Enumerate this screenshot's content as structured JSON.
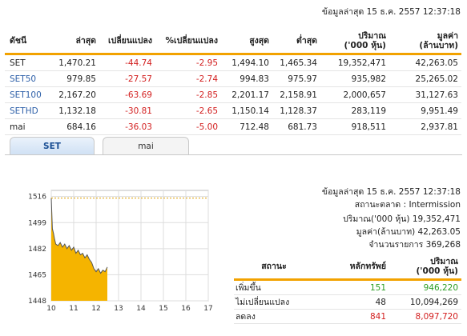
{
  "update_line": "ข้อมูลล่าสุด 15 ธ.ค. 2557 12:37:18",
  "index_table": {
    "headers": [
      "ดัชนี",
      "ล่าสุด",
      "เปลี่ยนแปลง",
      "%เปลี่ยนแปลง",
      "สูงสุด",
      "ต่ำสุด",
      "ปริมาณ ('000 หุ้น)",
      "มูลค่า (ล้านบาท)"
    ],
    "header_volume": [
      "ปริมาณ",
      "('000 หุ้น)"
    ],
    "header_value": [
      "มูลค่า",
      "(ล้านบาท)"
    ],
    "rows": [
      {
        "name": "SET",
        "last": "1,470.21",
        "change": "-44.74",
        "pct": "-2.95",
        "high": "1,494.10",
        "low": "1,465.34",
        "volume": "19,352,471",
        "value": "42,263.05"
      },
      {
        "name": "SET50",
        "last": "979.85",
        "change": "-27.57",
        "pct": "-2.74",
        "high": "994.83",
        "low": "975.97",
        "volume": "935,982",
        "value": "25,265.02"
      },
      {
        "name": "SET100",
        "last": "2,167.20",
        "change": "-63.69",
        "pct": "-2.85",
        "high": "2,201.17",
        "low": "2,158.91",
        "volume": "2,000,657",
        "value": "31,127.63"
      },
      {
        "name": "SETHD",
        "last": "1,132.18",
        "change": "-30.81",
        "pct": "-2.65",
        "high": "1,150.14",
        "low": "1,128.37",
        "volume": "283,119",
        "value": "9,951.49"
      },
      {
        "name": "mai",
        "last": "684.16",
        "change": "-36.03",
        "pct": "-5.00",
        "high": "712.48",
        "low": "681.73",
        "volume": "918,511",
        "value": "2,937.81"
      }
    ]
  },
  "tabs": [
    {
      "label": "SET",
      "active": true
    },
    {
      "label": "mai",
      "active": false
    }
  ],
  "chart_data": {
    "type": "area",
    "x_ticks": [
      "10",
      "11",
      "12",
      "13",
      "14",
      "15",
      "16",
      "17"
    ],
    "y_ticks": [
      "1448",
      "1465",
      "1482",
      "1499",
      "1516"
    ],
    "ylim": [
      1448,
      1520
    ],
    "xlim": [
      10,
      17
    ],
    "reference_level": 1515,
    "fill_color": "#f5b400",
    "x": [
      10.0,
      10.05,
      10.1,
      10.15,
      10.2,
      10.3,
      10.4,
      10.5,
      10.6,
      10.7,
      10.8,
      10.9,
      11.0,
      11.1,
      11.2,
      11.3,
      11.4,
      11.5,
      11.6,
      11.7,
      11.8,
      11.9,
      12.0,
      12.1,
      12.2,
      12.3,
      12.4,
      12.5
    ],
    "y": [
      1515,
      1495,
      1492,
      1488,
      1485,
      1484,
      1486,
      1483,
      1485,
      1482,
      1484,
      1481,
      1483,
      1479,
      1481,
      1478,
      1479,
      1476,
      1478,
      1475,
      1473,
      1469,
      1467,
      1469,
      1466,
      1468,
      1467,
      1470
    ]
  },
  "market_info": {
    "update_line": "ข้อมูลล่าสุด 15 ธ.ค. 2557 12:37:18",
    "status_line": "สถานะตลาด : Intermission",
    "volume_line": "ปริมาณ('000 หุ้น) 19,352,471",
    "value_line": "มูลค่า(ล้านบาท) 42,263.05",
    "trades_line": "จำนวนรายการ 369,268"
  },
  "breadth_table": {
    "header_status": "สถานะ",
    "header_securities": "หลักทรัพย์",
    "header_volume": [
      "ปริมาณ",
      "('000 หุ้น)"
    ],
    "rows": [
      {
        "status": "เพิ่มขึ้น",
        "securities": "151",
        "volume": "946,220",
        "color": "#2a9d24"
      },
      {
        "status": "ไม่เปลี่ยนแปลง",
        "securities": "48",
        "volume": "10,094,269",
        "color": "#222222"
      },
      {
        "status": "ลดลง",
        "securities": "841",
        "volume": "8,097,720",
        "color": "#d21d1d"
      }
    ]
  }
}
